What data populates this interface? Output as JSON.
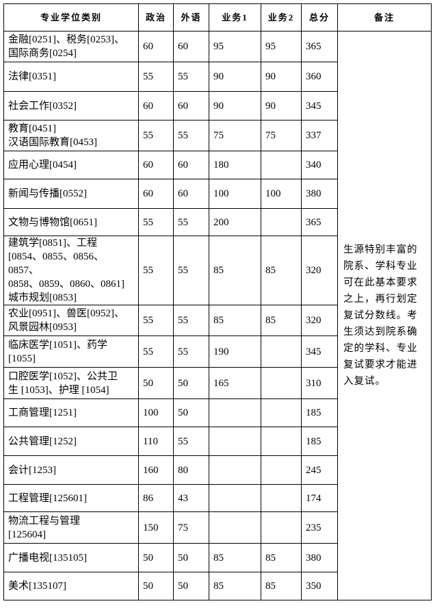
{
  "table": {
    "header": [
      "专业学位类别",
      "政治",
      "外语",
      "业务1",
      "业务2",
      "总分",
      "备注"
    ],
    "rows": [
      {
        "name": [
          "金融[0251]、税务[0253]、",
          "国际商务[0254]"
        ],
        "scores": [
          60,
          60,
          95,
          95,
          365
        ]
      },
      {
        "name": [
          "法律[0351]"
        ],
        "scores": [
          55,
          55,
          90,
          90,
          360
        ]
      },
      {
        "name": [
          "社会工作[0352]"
        ],
        "scores": [
          60,
          60,
          90,
          90,
          345
        ]
      },
      {
        "name": [
          "教育[0451]",
          "汉语国际教育[0453]"
        ],
        "scores": [
          55,
          55,
          75,
          75,
          337
        ]
      },
      {
        "name": [
          "应用心理[0454]"
        ],
        "scores": [
          60,
          60,
          180,
          null,
          340
        ]
      },
      {
        "name": [
          "新闻与传播[0552]"
        ],
        "scores": [
          60,
          60,
          100,
          100,
          380
        ]
      },
      {
        "name": [
          "文物与博物馆[0651]"
        ],
        "scores": [
          55,
          55,
          200,
          null,
          365
        ]
      },
      {
        "name": [
          "建筑学[0851]、工程",
          "[0854、0855、0856、0857、",
          "0858、0859、0860、0861]",
          "城市规划[0853]"
        ],
        "scores": [
          55,
          55,
          85,
          85,
          320
        ]
      },
      {
        "name": [
          "农业[0951]、兽医[0952]、",
          "风景园林[0953]"
        ],
        "scores": [
          55,
          55,
          85,
          85,
          320
        ]
      },
      {
        "name": [
          "临床医学[1051]、药学",
          "[1055]"
        ],
        "scores": [
          55,
          55,
          190,
          null,
          345
        ]
      },
      {
        "name": [
          "口腔医学[1052]、公共卫",
          "生 [1053]、护理 [1054]"
        ],
        "scores": [
          50,
          50,
          165,
          null,
          310
        ]
      },
      {
        "name": [
          "工商管理[1251]"
        ],
        "scores": [
          100,
          50,
          null,
          null,
          185
        ]
      },
      {
        "name": [
          "公共管理[1252]"
        ],
        "scores": [
          110,
          55,
          null,
          null,
          185
        ]
      },
      {
        "name": [
          "会计[1253]"
        ],
        "scores": [
          160,
          80,
          null,
          null,
          245
        ]
      },
      {
        "name": [
          "工程管理[125601]"
        ],
        "scores": [
          86,
          43,
          null,
          null,
          174
        ]
      },
      {
        "name": [
          "物流工程与管理",
          "[125604]"
        ],
        "scores": [
          150,
          75,
          null,
          null,
          235
        ]
      },
      {
        "name": [
          "广播电视[135105]"
        ],
        "scores": [
          50,
          50,
          85,
          85,
          380
        ]
      },
      {
        "name": [
          "美术[135107]"
        ],
        "scores": [
          50,
          50,
          85,
          85,
          350
        ]
      }
    ],
    "note": "生源特别丰富的院系、学科专业可在此基本要求之上，再行划定复试分数线。考生须达到院系确定的学科、专业复试要求才能进入复试。"
  }
}
